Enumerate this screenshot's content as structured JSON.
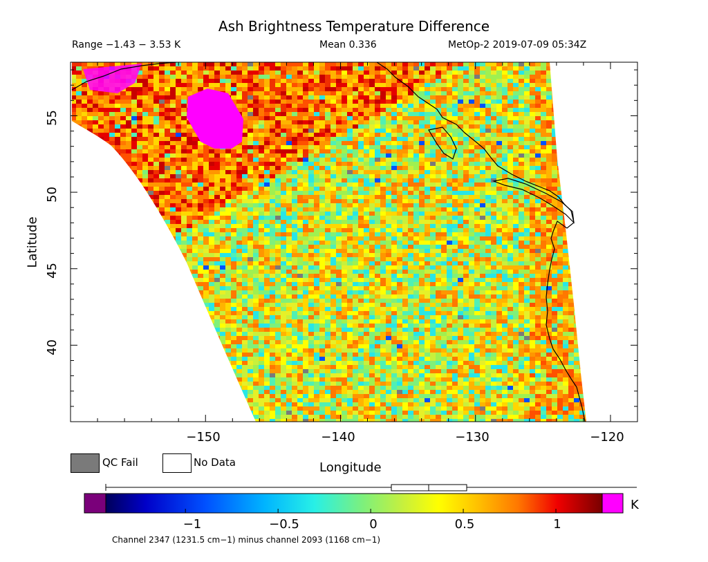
{
  "title": "Ash Brightness Temperature Difference",
  "header": {
    "range": "Range −1.43 − 3.53 K",
    "mean": "Mean 0.336",
    "satellite": "MetOp-2 2019-07-09 05:34Z"
  },
  "axes": {
    "xlabel": "Longitude",
    "ylabel": "Latitude",
    "lon_ticks": [
      "−150",
      "−140",
      "−130",
      "−120"
    ],
    "lat_ticks": [
      "55",
      "50",
      "45",
      "40"
    ],
    "lon_range": [
      -160,
      -118
    ],
    "lat_range": [
      35,
      58.5
    ]
  },
  "legend": {
    "qc_fail_label": "QC Fail",
    "no_data_label": "No Data",
    "qc_fail_color": "#7a7a7a",
    "no_data_color": "#ffffff"
  },
  "colorbar": {
    "unit": "K",
    "ticks": [
      "−1",
      "−0.5",
      "0",
      "0.5",
      "1"
    ],
    "range": [
      -1.43,
      1.25
    ],
    "under_color": "#7a007a",
    "over_color": "#ff00ff",
    "box_stats": {
      "box_low": 0.1,
      "median": 0.3,
      "box_high": 0.5,
      "whisker_low": -1.43,
      "whisker_high": 3.53
    }
  },
  "footnote": "Channel 2347 (1231.5 cm−1) minus channel 2093 (1168 cm−1)",
  "colors": {
    "plume": "#ff00ff",
    "land_outline": "#000000"
  }
}
